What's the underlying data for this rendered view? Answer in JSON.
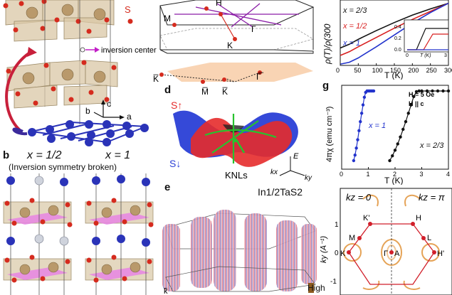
{
  "labels": {
    "b": "b",
    "d": "d",
    "e": "e",
    "g": "g"
  },
  "panel_a": {
    "atom_label": "S",
    "inversion_center": "inversion center",
    "axis_a": "a",
    "axis_b": "b",
    "axis_c": "c",
    "colors": {
      "ta": "#c9ad86",
      "s": "#d52b1e",
      "in": "#2a33b8"
    }
  },
  "panel_b": {
    "left_x": "x = 1/2",
    "right_x": "x = 1",
    "subtitle": "(Inversion symmetry broken)"
  },
  "panel_c": {
    "points": [
      "H",
      "Γ",
      "M",
      "K",
      "K̅",
      "M̅",
      "K̅",
      "Γ̅"
    ]
  },
  "panel_d": {
    "s_up": "S↑",
    "s_down": "S↓",
    "knls": "KNLs",
    "axis_e": "E",
    "axis_kx": "kx",
    "axis_ky": "ky",
    "colors": {
      "up": "#e52b2b",
      "down": "#2a3fd6",
      "line": "#27c22e"
    }
  },
  "panel_e": {
    "title": "In1/2TaS2",
    "bottom_label": "k̃",
    "colorbar_label": "High"
  },
  "panel_f": {
    "ylabel": "ρ(T)/ρ(300",
    "xlabel": "T (K)",
    "xticks": [
      "0",
      "50",
      "100",
      "150",
      "200",
      "250",
      "300"
    ],
    "series_labels": [
      "x = 2/3",
      "x = 1/2",
      "x = 1"
    ],
    "inset_ytick": [
      "0.4",
      "0.2",
      "0.0"
    ],
    "inset_xtick": [
      "0",
      "T (K)",
      "3"
    ],
    "chart_data": {
      "type": "line",
      "x": [
        0,
        25,
        50,
        100,
        150,
        200,
        250,
        300
      ],
      "series": [
        {
          "name": "x = 2/3",
          "values": [
            0.28,
            0.34,
            0.42,
            0.56,
            0.69,
            0.81,
            0.91,
            1.0
          ]
        },
        {
          "name": "x = 1/2",
          "values": [
            0.16,
            0.22,
            0.3,
            0.45,
            0.6,
            0.74,
            0.87,
            1.0
          ]
        },
        {
          "name": "x = 1",
          "values": [
            0.02,
            0.05,
            0.12,
            0.3,
            0.49,
            0.68,
            0.85,
            1.0
          ]
        }
      ],
      "xlim": [
        0,
        300
      ],
      "colors": [
        "#111111",
        "#d81e1e",
        "#2233cc"
      ]
    }
  },
  "panel_g": {
    "ylabel": "4πχ (emu cm⁻³)",
    "xlabel": "T (K)",
    "xticks": [
      "0",
      "1",
      "2",
      "3",
      "4"
    ],
    "legend_h": "H = 5 Oe",
    "legend_c": "H || c",
    "series_labels": [
      "x = 1",
      "x = 2/3"
    ],
    "chart_data": {
      "type": "scatter",
      "xlim": [
        0,
        4
      ],
      "series": [
        {
          "name": "x = 1",
          "x": [
            0.45,
            0.5,
            0.55,
            0.6,
            0.65,
            0.7,
            0.75,
            0.8,
            0.85,
            0.9,
            0.95,
            1.0,
            1.05,
            1.1,
            1.15,
            1.2
          ],
          "values": [
            -1.0,
            -0.92,
            -0.82,
            -0.7,
            -0.57,
            -0.44,
            -0.32,
            -0.2,
            -0.09,
            -0.02,
            0.0,
            0.0,
            0.0,
            0.0,
            0.0,
            0.0
          ],
          "color": "#2233cc"
        },
        {
          "name": "x = 2/3",
          "x": [
            1.8,
            1.9,
            2.0,
            2.1,
            2.2,
            2.3,
            2.4,
            2.5,
            2.6,
            2.7,
            2.8,
            2.9,
            3.0,
            3.2,
            3.4,
            3.6,
            3.8,
            4.0
          ],
          "values": [
            -1.0,
            -0.93,
            -0.85,
            -0.76,
            -0.66,
            -0.55,
            -0.44,
            -0.32,
            -0.2,
            -0.08,
            -0.01,
            0.0,
            0.0,
            0.0,
            0.0,
            0.0,
            0.0,
            0.0
          ],
          "color": "#111111"
        }
      ]
    }
  },
  "panel_h": {
    "kz0": "kz = 0",
    "kzpi": "kz = π",
    "ylabel": "ky (Å⁻¹)",
    "yticks": [
      "1",
      "0",
      "-1"
    ],
    "points": [
      "K'",
      "H",
      "M",
      "L",
      "K",
      "Γ",
      "A",
      "H'"
    ],
    "colors": {
      "hex": "#d11f2a",
      "contour": "#e39a45"
    }
  }
}
